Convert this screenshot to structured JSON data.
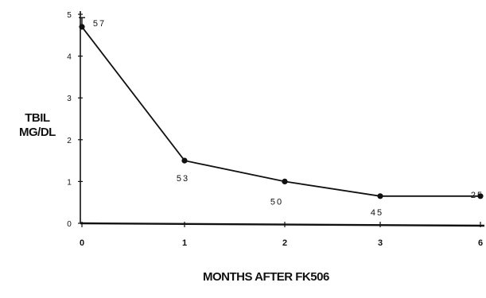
{
  "chart_data": {
    "type": "line",
    "xlabel": "MONTHS AFTER FK506",
    "ylabel_lines": [
      "TBIL",
      "MG/DL"
    ],
    "x_tick_labels": [
      "0",
      "1",
      "2",
      "3",
      "6"
    ],
    "y_tick_labels": [
      "0",
      "1",
      "2",
      "3",
      "4",
      "5"
    ],
    "ylim": [
      0,
      5
    ],
    "series": [
      {
        "x": [
          "0",
          "1",
          "2",
          "3",
          "6"
        ],
        "values": [
          4.7,
          1.5,
          1.0,
          0.65,
          0.65
        ],
        "point_labels": [
          "57",
          "53",
          "50",
          "45",
          "25"
        ]
      }
    ],
    "error_bar_top": 4.92
  }
}
